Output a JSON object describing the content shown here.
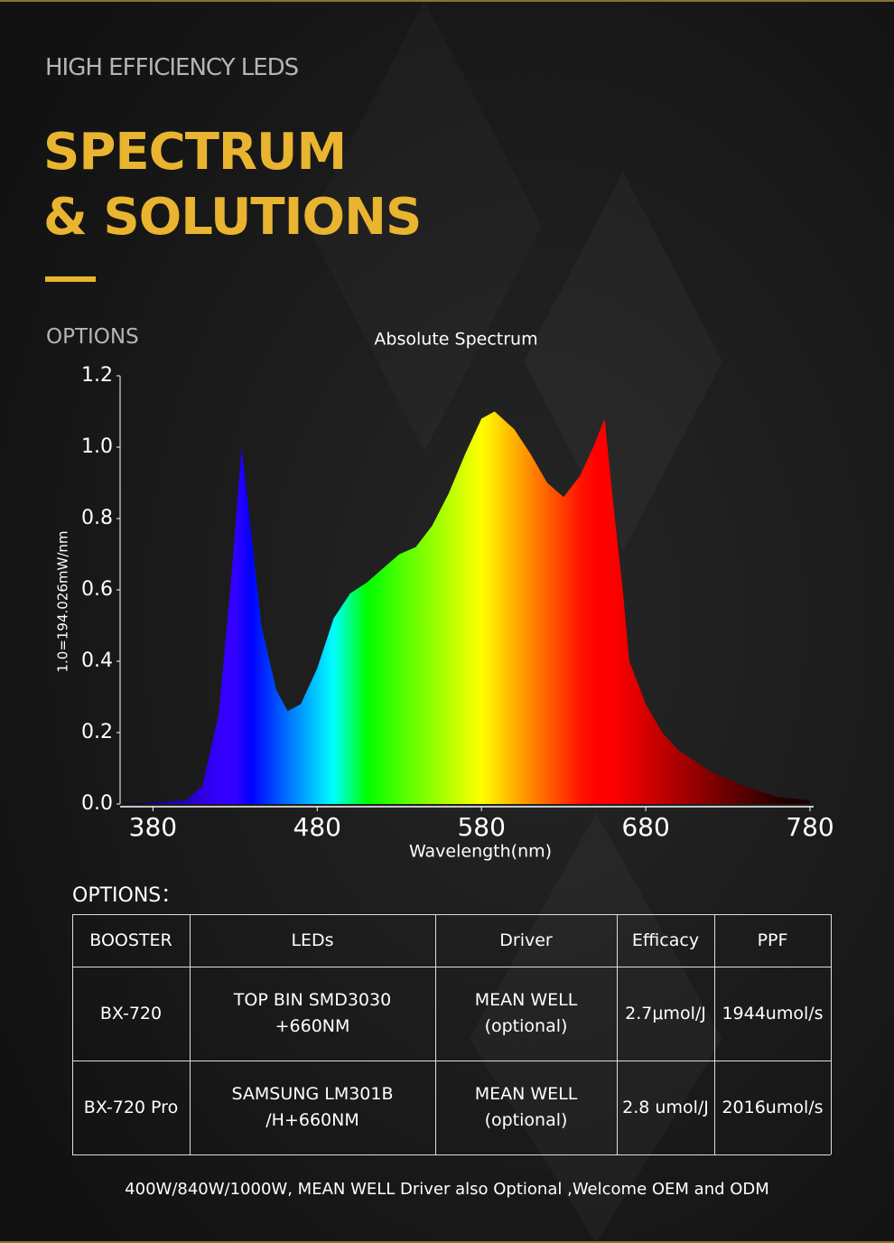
{
  "header": {
    "kicker": "HIGH EFFICIENCY LEDS",
    "title_lines": [
      "SPECTRUM",
      "& SOLUTIONS"
    ],
    "section": "OPTIONS"
  },
  "chart_data": {
    "type": "area",
    "title": "Absolute Spectrum",
    "x_label": "Wavelength(nm)",
    "y_label": "1.0=194.026mW/nm",
    "x": [
      360,
      400,
      410,
      420,
      428,
      434,
      440,
      446,
      455,
      462,
      470,
      480,
      490,
      500,
      510,
      520,
      530,
      540,
      550,
      560,
      570,
      580,
      588,
      600,
      610,
      620,
      630,
      640,
      648,
      655,
      660,
      666,
      670,
      680,
      690,
      700,
      720,
      740,
      760,
      780
    ],
    "values": [
      0,
      0.01,
      0.05,
      0.25,
      0.65,
      1.0,
      0.75,
      0.5,
      0.32,
      0.26,
      0.28,
      0.38,
      0.52,
      0.59,
      0.62,
      0.66,
      0.7,
      0.72,
      0.78,
      0.87,
      0.98,
      1.08,
      1.1,
      1.05,
      0.98,
      0.9,
      0.86,
      0.92,
      1.0,
      1.08,
      0.85,
      0.6,
      0.4,
      0.28,
      0.2,
      0.15,
      0.09,
      0.05,
      0.02,
      0.01
    ],
    "xlim": [
      360,
      780
    ],
    "xticks": [
      380,
      480,
      580,
      680,
      780
    ],
    "ylim": [
      0,
      1.2
    ],
    "yticks": [
      {
        "value": 0,
        "label": "0.0"
      },
      0.2,
      0.4,
      0.6,
      0.8,
      {
        "value": 1,
        "label": "1.0"
      },
      1.2
    ]
  },
  "table": {
    "heading": "OPTIONS：",
    "header": [
      "BOOSTER",
      "LEDs",
      "Driver",
      "Efficacy",
      "PPF"
    ],
    "rows": [
      [
        [
          "BX-720"
        ],
        [
          "TOP BIN SMD3030",
          "+660NM"
        ],
        [
          "MEAN WELL",
          "(optional)"
        ],
        [
          "2.7μmol/J"
        ],
        [
          "1944umol/s"
        ]
      ],
      [
        [
          "BX-720 Pro"
        ],
        [
          "SAMSUNG LM301B",
          "/H+660NM"
        ],
        [
          "MEAN WELL",
          "(optional)"
        ],
        [
          "2.8 umol/J"
        ],
        [
          "2016umol/s"
        ]
      ]
    ]
  },
  "footer": "400W/840W/1000W, MEAN WELL Driver also Optional ,Welcome OEM and ODM"
}
